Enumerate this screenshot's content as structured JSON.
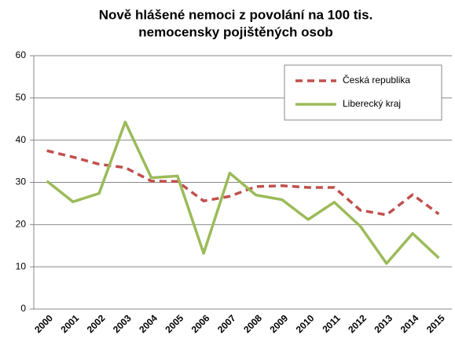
{
  "chart_data": {
    "type": "line",
    "title": [
      "Nově hlášené nemoci z povolání na 100 tis.",
      "nemocensky pojištěných osob"
    ],
    "categories": [
      "2000",
      "2001",
      "2002",
      "2003",
      "2004",
      "2005",
      "2006",
      "2007",
      "2008",
      "2009",
      "2010",
      "2011",
      "2012",
      "2013",
      "2014",
      "2015"
    ],
    "series": [
      {
        "name": "Česká republika",
        "color": "#c0504d",
        "dashed": true,
        "values": [
          37.5,
          36,
          34.3,
          33.5,
          30.3,
          30.2,
          25.6,
          26.7,
          29,
          29.2,
          28.8,
          28.8,
          23.4,
          22.3,
          27.1,
          22.5
        ]
      },
      {
        "name": "Liberecký kraj",
        "color": "#9bbb59",
        "dashed": false,
        "values": [
          30.3,
          25.4,
          27.4,
          44.3,
          31.1,
          31.5,
          13.2,
          32.2,
          27,
          25.9,
          21.2,
          25.3,
          19.6,
          10.8,
          17.9,
          12.1
        ]
      }
    ],
    "ylim": [
      0,
      60
    ],
    "yticks": [
      0,
      10,
      20,
      30,
      40,
      50,
      60
    ],
    "grid": true,
    "legend": "top-right"
  }
}
